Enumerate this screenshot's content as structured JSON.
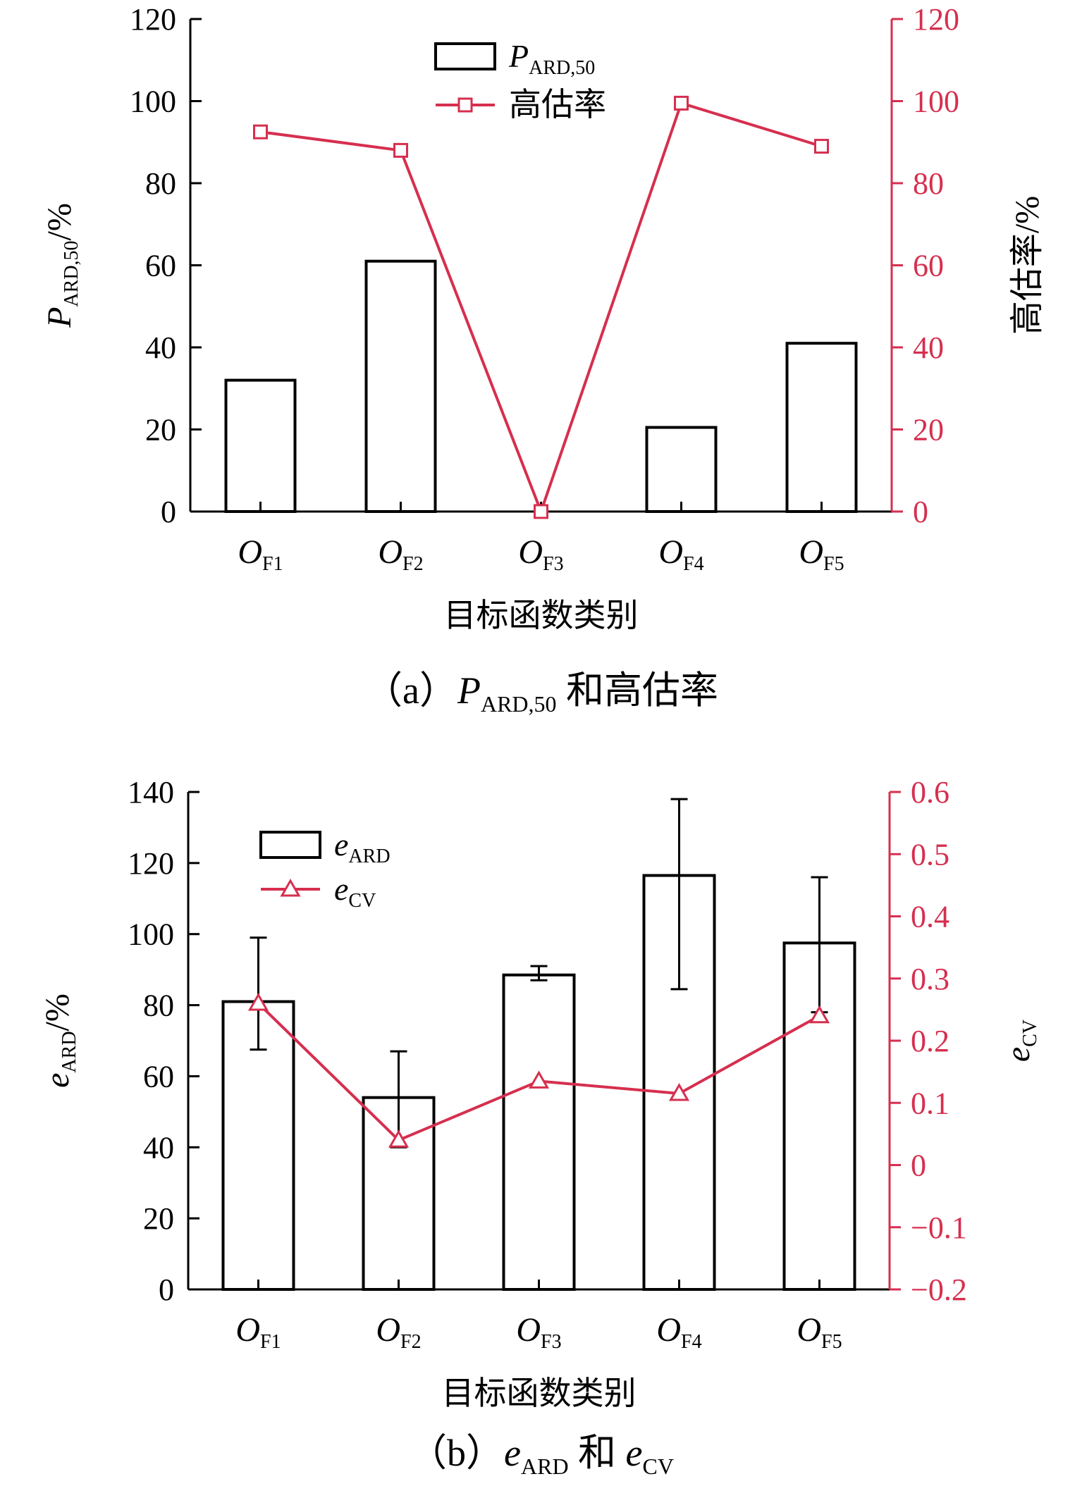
{
  "colors": {
    "axis_left": "#000000",
    "axis_right": "#d62f4f",
    "bar_stroke": "#000000",
    "line": "#d62f4f"
  },
  "chart_data": [
    {
      "type": "bar",
      "caption": {
        "prefix": "（a）",
        "p_main": "P",
        "p_sub": "ARD,50",
        "suffix": " 和高估率"
      },
      "xlabel": "目标函数类别",
      "categories": [
        {
          "main": "O",
          "sub": "F1"
        },
        {
          "main": "O",
          "sub": "F2"
        },
        {
          "main": "O",
          "sub": "F3"
        },
        {
          "main": "O",
          "sub": "F4"
        },
        {
          "main": "O",
          "sub": "F5"
        }
      ],
      "ylabel_left": {
        "main": "P",
        "sub": "ARD,50",
        "suffix": "/%"
      },
      "ylabel_right": "高估率/%",
      "ylim_left": [
        0,
        120
      ],
      "ylim_right": [
        0,
        120
      ],
      "yticks_left": [
        "0",
        "20",
        "40",
        "60",
        "80",
        "100",
        "120"
      ],
      "yticks_right": [
        "0",
        "20",
        "40",
        "60",
        "80",
        "100",
        "120"
      ],
      "legend": [
        {
          "kind": "bar",
          "main": "P",
          "sub": "ARD,50"
        },
        {
          "kind": "line-square",
          "text": "高估率"
        }
      ],
      "legend_position": "top-center",
      "series": [
        {
          "kind": "bar",
          "axis": "left",
          "values": [
            32,
            61,
            0,
            20.5,
            41
          ]
        },
        {
          "kind": "line",
          "axis": "right",
          "marker": "square",
          "values": [
            92.5,
            88,
            0,
            99.5,
            89
          ]
        }
      ]
    },
    {
      "type": "bar",
      "caption": {
        "prefix": "（b）",
        "e1_main": "e",
        "e1_sub": "ARD",
        "middle": " 和 ",
        "e2_main": "e",
        "e2_sub": "CV"
      },
      "xlabel": "目标函数类别",
      "categories": [
        {
          "main": "O",
          "sub": "F1"
        },
        {
          "main": "O",
          "sub": "F2"
        },
        {
          "main": "O",
          "sub": "F3"
        },
        {
          "main": "O",
          "sub": "F4"
        },
        {
          "main": "O",
          "sub": "F5"
        }
      ],
      "ylabel_left": {
        "main": "e",
        "sub": "ARD",
        "suffix": "/%"
      },
      "ylabel_right": {
        "main": "e",
        "sub": "CV"
      },
      "ylim_left": [
        0,
        140
      ],
      "ylim_right": [
        -0.2,
        0.6
      ],
      "yticks_left": [
        "0",
        "20",
        "40",
        "60",
        "80",
        "100",
        "120",
        "140"
      ],
      "yticks_right": [
        "−0.2",
        "−0.1",
        "0",
        "0.1",
        "0.2",
        "0.3",
        "0.4",
        "0.5",
        "0.6"
      ],
      "legend": [
        {
          "kind": "bar",
          "main": "e",
          "sub": "ARD"
        },
        {
          "kind": "line-triangle",
          "main": "e",
          "sub": "CV"
        }
      ],
      "legend_position": "top-left",
      "series": [
        {
          "kind": "bar",
          "axis": "left",
          "values": [
            81,
            54,
            88.5,
            116.5,
            97.5
          ],
          "error_low": [
            67.5,
            40,
            87,
            84.5,
            78
          ],
          "error_high": [
            99,
            67,
            91,
            138,
            116
          ]
        },
        {
          "kind": "line",
          "axis": "right",
          "marker": "triangle",
          "values": [
            0.26,
            0.04,
            0.135,
            0.115,
            0.24
          ]
        }
      ]
    }
  ]
}
